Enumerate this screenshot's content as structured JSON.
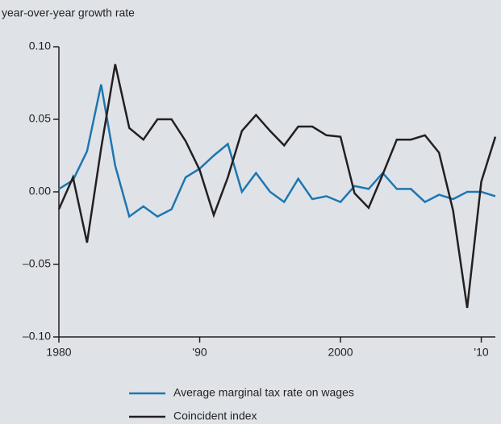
{
  "chart_data": {
    "type": "line",
    "y_label": "year-over-year growth rate",
    "x": [
      1980,
      1981,
      1982,
      1983,
      1984,
      1985,
      1986,
      1987,
      1988,
      1989,
      1990,
      1991,
      1992,
      1993,
      1994,
      1995,
      1996,
      1997,
      1998,
      1999,
      2000,
      2001,
      2002,
      2003,
      2004,
      2005,
      2006,
      2007,
      2008,
      2009,
      2010,
      2011
    ],
    "series": [
      {
        "name": "Average marginal tax rate on wages",
        "color": "#1f76b0",
        "values": [
          0.002,
          0.008,
          0.028,
          0.074,
          0.018,
          -0.017,
          -0.01,
          -0.017,
          -0.012,
          0.01,
          0.016,
          0.025,
          0.033,
          0.0,
          0.013,
          0.0,
          -0.007,
          0.009,
          -0.005,
          -0.003,
          -0.007,
          0.004,
          0.002,
          0.013,
          0.002,
          0.002,
          -0.007,
          -0.002,
          -0.005,
          0.0,
          0.0,
          -0.003
        ]
      },
      {
        "name": "Coincident index",
        "color": "#231f20",
        "values": [
          -0.012,
          0.01,
          -0.035,
          0.03,
          0.088,
          0.044,
          0.036,
          0.05,
          0.05,
          0.035,
          0.015,
          -0.016,
          0.01,
          0.042,
          0.053,
          0.042,
          0.032,
          0.045,
          0.045,
          0.039,
          0.038,
          -0.001,
          -0.011,
          0.012,
          0.036,
          0.036,
          0.039,
          0.027,
          -0.013,
          -0.08,
          0.007,
          0.038
        ]
      }
    ],
    "xlim": [
      1980,
      2011
    ],
    "xticks": [
      1980,
      {
        "value": 1990,
        "label": "'90"
      },
      2000,
      {
        "value": 2010,
        "label": "'10"
      }
    ],
    "ylim": [
      -0.1,
      0.1
    ],
    "yticks": [
      {
        "value": -0.1,
        "label": "–0.10"
      },
      {
        "value": -0.05,
        "label": "–0.05"
      },
      {
        "value": 0,
        "label": "0.00"
      },
      0.05,
      {
        "value": 0.1,
        "label": "0.10"
      }
    ]
  }
}
